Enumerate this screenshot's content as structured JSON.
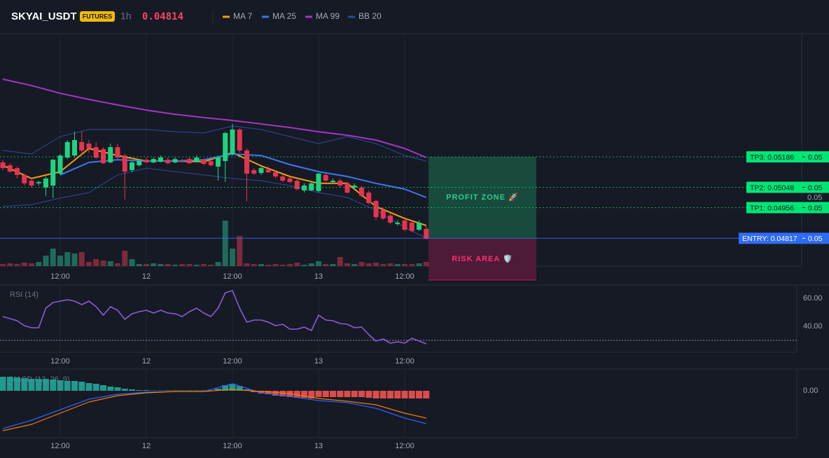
{
  "chart_data": {
    "type": "candlestick",
    "symbol": "SKYAI_USDT",
    "badge": "FUTURES",
    "interval": "1h",
    "price": 0.04814,
    "up_color": "#1fd47f",
    "down_color": "#e8334f",
    "ylim": [
      0.04691,
      0.05738
    ],
    "yticks": [
      0.05
    ],
    "xticks": [
      {
        "value": 8,
        "label": "12:00"
      },
      {
        "value": 20,
        "label": "12"
      },
      {
        "value": 32,
        "label": "12:00"
      },
      {
        "value": 44,
        "label": "13"
      },
      {
        "value": 56,
        "label": "12:00"
      }
    ],
    "candles": [
      [
        0.05161,
        0.05173,
        0.05126,
        0.05135
      ],
      [
        0.05148,
        0.05157,
        0.05113,
        0.05119
      ],
      [
        0.05135,
        0.05142,
        0.05088,
        0.05104
      ],
      [
        0.05104,
        0.0511,
        0.05056,
        0.05066
      ],
      [
        0.05078,
        0.05088,
        0.05047,
        0.05056
      ],
      [
        0.05066,
        0.05078,
        0.05056,
        0.05072
      ],
      [
        0.05047,
        0.05097,
        0.05009,
        0.05088
      ],
      [
        0.05056,
        0.05176,
        0.04999,
        0.05173
      ],
      [
        0.0511,
        0.05199,
        0.05104,
        0.05192
      ],
      [
        0.05183,
        0.05262,
        0.05176,
        0.05253
      ],
      [
        0.05192,
        0.053,
        0.05183,
        0.05262
      ],
      [
        0.05253,
        0.053,
        0.05205,
        0.05215
      ],
      [
        0.05246,
        0.05262,
        0.05205,
        0.05224
      ],
      [
        0.0523,
        0.05253,
        0.05176,
        0.05183
      ],
      [
        0.05221,
        0.0523,
        0.05154,
        0.05157
      ],
      [
        0.05161,
        0.05246,
        0.05157,
        0.0523
      ],
      [
        0.0523,
        0.05246,
        0.05176,
        0.05183
      ],
      [
        0.05192,
        0.05199,
        0.04993,
        0.05119
      ],
      [
        0.05126,
        0.05167,
        0.05116,
        0.05161
      ],
      [
        0.05148,
        0.05173,
        0.05142,
        0.05167
      ],
      [
        0.05173,
        0.05183,
        0.05157,
        0.05161
      ],
      [
        0.05161,
        0.05183,
        0.05157,
        0.05176
      ],
      [
        0.05164,
        0.05192,
        0.05161,
        0.05183
      ],
      [
        0.05173,
        0.05183,
        0.05154,
        0.05157
      ],
      [
        0.05161,
        0.05183,
        0.05157,
        0.05176
      ],
      [
        0.05167,
        0.05176,
        0.05161,
        0.05164
      ],
      [
        0.05176,
        0.05183,
        0.05154,
        0.05157
      ],
      [
        0.05164,
        0.05192,
        0.05161,
        0.05183
      ],
      [
        0.05173,
        0.05176,
        0.05148,
        0.05154
      ],
      [
        0.05167,
        0.05173,
        0.05142,
        0.05148
      ],
      [
        0.05142,
        0.05192,
        0.05078,
        0.05183
      ],
      [
        0.05167,
        0.053,
        0.05072,
        0.05294
      ],
      [
        0.05199,
        0.05335,
        0.05192,
        0.0531
      ],
      [
        0.0531,
        0.05316,
        0.05205,
        0.05215
      ],
      [
        0.05215,
        0.05224,
        0.04986,
        0.0511
      ],
      [
        0.05126,
        0.05135,
        0.05104,
        0.0511
      ],
      [
        0.05113,
        0.05142,
        0.05104,
        0.05135
      ],
      [
        0.05129,
        0.05142,
        0.05113,
        0.05116
      ],
      [
        0.05116,
        0.05126,
        0.05088,
        0.05097
      ],
      [
        0.05097,
        0.05104,
        0.05072,
        0.05078
      ],
      [
        0.05088,
        0.05097,
        0.05066,
        0.05072
      ],
      [
        0.05078,
        0.05088,
        0.05034,
        0.0504
      ],
      [
        0.05034,
        0.05066,
        0.05024,
        0.05056
      ],
      [
        0.05034,
        0.05072,
        0.05031,
        0.05066
      ],
      [
        0.05031,
        0.05113,
        0.05024,
        0.0511
      ],
      [
        0.05104,
        0.0511,
        0.05072,
        0.05078
      ],
      [
        0.05072,
        0.05088,
        0.05066,
        0.05078
      ],
      [
        0.05078,
        0.05088,
        0.05047,
        0.05056
      ],
      [
        0.05066,
        0.05072,
        0.0502,
        0.05024
      ],
      [
        0.05047,
        0.05066,
        0.0504,
        0.05056
      ],
      [
        0.05047,
        0.05056,
        0.05003,
        0.05009
      ],
      [
        0.05024,
        0.05034,
        0.0497,
        0.04977
      ],
      [
        0.04986,
        0.04993,
        0.049,
        0.04913
      ],
      [
        0.04945,
        0.04955,
        0.049,
        0.04907
      ],
      [
        0.0492,
        0.04929,
        0.0488,
        0.04888
      ],
      [
        0.04882,
        0.04898,
        0.04875,
        0.04888
      ],
      [
        0.04898,
        0.04907,
        0.0485,
        0.04856
      ],
      [
        0.04888,
        0.04898,
        0.04845,
        0.0485
      ],
      [
        0.04856,
        0.04898,
        0.0485,
        0.04888
      ],
      [
        0.0486,
        0.04875,
        0.04812,
        0.04814
      ]
    ],
    "volume_ylim": [
      0,
      100
    ],
    "volume": [
      3,
      4,
      3,
      5,
      4,
      6,
      15,
      25,
      15,
      20,
      18,
      20,
      6,
      10,
      8,
      7,
      4,
      22,
      10,
      3,
      3,
      4,
      3,
      3,
      2,
      3,
      3,
      2,
      3,
      2,
      6,
      65,
      25,
      43,
      4,
      3,
      3,
      2,
      3,
      2,
      3,
      5,
      2,
      4,
      7,
      3,
      3,
      13,
      4,
      3,
      6,
      4,
      5,
      3,
      4,
      3,
      3,
      3,
      4,
      6
    ],
    "line_x": [
      0,
      4,
      8,
      12,
      16,
      20,
      24,
      28,
      32,
      36,
      40,
      44,
      48,
      52,
      56,
      59
    ],
    "series": [
      {
        "name": "MA 7",
        "color": "#f39c12",
        "values": [
          0.05148,
          0.05088,
          0.05119,
          0.05224,
          0.05192,
          0.05167,
          0.05167,
          0.05164,
          0.05205,
          0.05145,
          0.05097,
          0.05066,
          0.05066,
          0.04961,
          0.04907,
          0.04875
        ]
      },
      {
        "name": "MA 25",
        "color": "#3b78f0",
        "values": [
          null,
          null,
          0.05104,
          0.05161,
          0.05173,
          0.05167,
          0.05167,
          0.05173,
          0.05199,
          0.05192,
          0.05151,
          0.05119,
          0.05097,
          0.05066,
          0.0504,
          0.05002
        ]
      },
      {
        "name": "MA 99",
        "color": "#a335c4",
        "values": [
          0.05538,
          0.05509,
          0.05474,
          0.05446,
          0.05421,
          0.05398,
          0.05379,
          0.05364,
          0.05351,
          0.05335,
          0.05319,
          0.053,
          0.05284,
          0.05262,
          0.05224,
          0.05183
        ]
      },
      {
        "name": "BB 20",
        "color": "#2c4aa0",
        "upper": [
          0.05215,
          0.05199,
          0.05278,
          0.0531,
          0.0531,
          0.0531,
          0.053,
          0.05294,
          0.05326,
          0.0531,
          0.05278,
          0.05246,
          0.05278,
          0.05246,
          0.05192,
          0.05167
        ],
        "lower": [
          0.04961,
          0.0497,
          0.04999,
          0.05024,
          0.05104,
          0.05135,
          0.05119,
          0.05104,
          0.05088,
          0.05078,
          0.05056,
          0.05024,
          0.05002,
          0.04945,
          0.04866,
          0.04818
        ]
      }
    ],
    "levels": [
      {
        "label": "TP3: 0.05186",
        "value": 0.05186,
        "axis_label": "0.05",
        "color": "#00e676"
      },
      {
        "label": "TP2: 0.05048",
        "value": 0.05048,
        "axis_label": "0.05",
        "color": "#00e676"
      },
      {
        "label": "TP1: 0.04956",
        "value": 0.04956,
        "axis_label": "0.05",
        "color": "#00e676"
      },
      {
        "label": "ENTRY: 0.04817",
        "value": 0.04817,
        "axis_label": "0.05",
        "color": "#2f6bf5"
      }
    ],
    "zones": {
      "profit": "PROFIT ZONE 🚀",
      "risk": "RISK AREA 🛡️",
      "stop": 0.04628
    },
    "rsi": {
      "title": "RSI (14)",
      "color": "#8a5cd6",
      "ylim": [
        23,
        68
      ],
      "yticks": [
        {
          "value": 60,
          "label": "60.00"
        },
        {
          "value": 40,
          "label": "40.00"
        }
      ],
      "level": 30,
      "values": [
        47,
        45.5,
        44,
        40.5,
        39,
        39,
        53,
        57,
        58,
        59,
        58,
        55.5,
        58,
        54,
        48,
        54,
        51.5,
        45,
        49,
        50.5,
        51.5,
        49.5,
        51.5,
        49.5,
        49,
        47,
        50.5,
        53,
        49.5,
        47,
        53,
        64,
        65.5,
        53,
        43,
        44.5,
        44.5,
        43,
        40.5,
        41.5,
        38,
        38,
        39.5,
        37,
        48,
        44.5,
        44,
        42,
        41.5,
        39,
        39.5,
        34,
        29.5,
        31,
        28,
        29,
        28,
        31.5,
        29.5,
        27.5
      ]
    },
    "macd": {
      "title": "MACD (12, 26, 9)",
      "ylim": [
        -0.0007,
        0.00028
      ],
      "yticks": [
        {
          "value": 0,
          "label": "0.00"
        }
      ],
      "hist_up": "#26a69a",
      "hist_down": "#ef5350",
      "macd_color": "#2962ff",
      "signal_color": "#f57c00",
      "hist": [
        0.0002,
        0.0002,
        0.00019,
        0.00018,
        0.00017,
        0.00017,
        0.00017,
        0.00016,
        0.00015,
        0.00014,
        0.00014,
        0.00013,
        0.00011,
        0.0001,
        8e-05,
        6e-05,
        5e-05,
        3e-05,
        2e-05,
        1e-05,
        1e-05,
        5e-06,
        5e-06,
        5e-06,
        5e-06,
        5e-06,
        5e-06,
        5e-06,
        5e-06,
        5e-06,
        3e-05,
        8e-05,
        0.0001,
        7e-05,
        2e-05,
        -2e-05,
        -4e-05,
        -5e-05,
        -7e-05,
        -8e-05,
        -9e-05,
        -0.0001,
        -0.0001,
        -0.00011,
        -9e-05,
        -9e-05,
        -9e-05,
        -9e-05,
        -9e-05,
        -9e-05,
        -9e-05,
        -0.0001,
        -0.00011,
        -0.00011,
        -0.00011,
        -0.00011,
        -0.00011,
        -0.00011,
        -0.00011,
        -0.00011
      ],
      "macd": [
        -0.00054,
        -0.00042,
        -0.00027,
        -0.00012,
        -5e-05,
        -2e-05,
        -1e-05,
        -1e-05,
        0.0001,
        -3e-05,
        -8e-05,
        -0.00014,
        -0.00017,
        -0.00025,
        -0.00039,
        -0.00047
      ],
      "signal": [
        -0.00057,
        -0.00048,
        -0.00032,
        -0.00016,
        -7e-05,
        -3e-05,
        -1e-05,
        -1e-05,
        2e-05,
        -1e-05,
        -4e-05,
        -0.00011,
        -0.00015,
        -0.0002,
        -0.00032,
        -0.00039
      ]
    }
  }
}
